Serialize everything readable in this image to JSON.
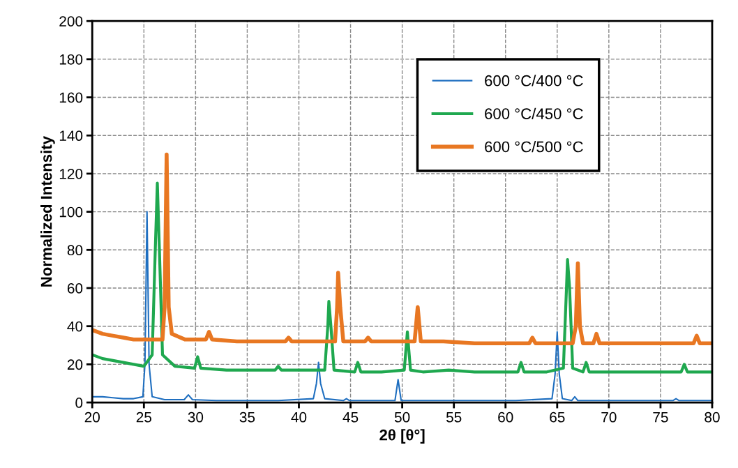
{
  "chart_data": {
    "type": "line",
    "xlabel": "2θ [θ°]",
    "ylabel": "Normalized Intensity",
    "xlim": [
      20,
      80
    ],
    "xticks": [
      20,
      25,
      30,
      35,
      40,
      45,
      50,
      55,
      60,
      65,
      70,
      75,
      80
    ],
    "ylim": [
      0,
      200
    ],
    "yticks": [
      0,
      20,
      40,
      60,
      80,
      100,
      120,
      140,
      160,
      180,
      200
    ],
    "grid": true,
    "legend": "top right",
    "marker": "none",
    "line_style": "solid",
    "series": [
      {
        "name": "600 °C/400 °C",
        "color": "#1f6fc0",
        "x": [
          20,
          21,
          22,
          23,
          24,
          24.9,
          25.1,
          25.3,
          25.5,
          25.8,
          27,
          28.9,
          29.3,
          29.7,
          32,
          35,
          38,
          41.4,
          41.7,
          41.9,
          42.1,
          42.5,
          44.3,
          44.6,
          44.9,
          47,
          49.3,
          49.6,
          49.9,
          53,
          57,
          61,
          64.5,
          64.8,
          65.0,
          65.2,
          65.5,
          66.4,
          66.7,
          67.0,
          70,
          76.2,
          76.5,
          76.8,
          80
        ],
        "values": [
          3,
          3,
          2.5,
          2,
          2,
          3,
          20,
          100,
          20,
          3,
          1.5,
          1.5,
          4,
          1.5,
          1,
          1,
          1,
          2,
          10,
          21,
          10,
          2,
          1,
          2,
          1,
          1,
          1,
          12,
          1,
          1,
          1,
          1,
          2,
          15,
          37,
          15,
          2,
          1,
          3,
          1,
          1,
          1,
          2,
          1,
          1
        ]
      },
      {
        "name": "600 °C/450 °C",
        "color": "#1fa84f",
        "x": [
          20,
          21,
          22,
          23,
          24,
          25,
          25.8,
          26.1,
          26.3,
          26.5,
          26.8,
          28,
          29.9,
          30.2,
          30.5,
          33,
          35,
          37.7,
          38,
          38.3,
          40,
          42.5,
          42.8,
          42.9,
          43.1,
          43.4,
          45.4,
          45.7,
          46,
          48,
          50.2,
          50.5,
          50.8,
          52,
          54.5,
          57,
          61.2,
          61.5,
          61.8,
          64,
          65.6,
          65.9,
          66.0,
          66.2,
          66.5,
          67.5,
          67.8,
          68.1,
          72,
          77,
          77.3,
          77.6,
          80
        ],
        "values": [
          25,
          23,
          22,
          21,
          20,
          19,
          25,
          80,
          115,
          80,
          25,
          19,
          18,
          24,
          18,
          17,
          17,
          17,
          19,
          17,
          17,
          17,
          40,
          53,
          40,
          17,
          16,
          21,
          16,
          16,
          17,
          37,
          17,
          16,
          17,
          16,
          16,
          21,
          16,
          16,
          18,
          60,
          75,
          60,
          18,
          16,
          21,
          16,
          16,
          16,
          20,
          16,
          16
        ]
      },
      {
        "name": "600 °C/500 °C",
        "color": "#e87722",
        "x": [
          20,
          21,
          22,
          23,
          24,
          25,
          26,
          26.8,
          27.0,
          27.2,
          27.4,
          27.7,
          29,
          31.0,
          31.3,
          31.6,
          34,
          36,
          38.7,
          39,
          39.3,
          42,
          43.5,
          43.7,
          43.8,
          44.0,
          44.3,
          46.4,
          46.7,
          47,
          49,
          51.2,
          51.5,
          51.8,
          54,
          57,
          62.3,
          62.6,
          62.9,
          65,
          66.5,
          66.8,
          67.0,
          67.2,
          67.5,
          68.5,
          68.8,
          69.1,
          72,
          78.2,
          78.5,
          78.8,
          80
        ],
        "values": [
          38,
          36,
          35,
          34,
          33,
          33,
          33,
          33,
          50,
          130,
          50,
          36,
          33,
          33,
          37,
          33,
          32,
          32,
          32,
          34,
          32,
          32,
          32,
          50,
          68,
          50,
          32,
          32,
          34,
          32,
          32,
          32,
          50,
          32,
          32,
          31,
          31,
          34,
          31,
          31,
          31,
          40,
          73,
          40,
          31,
          31,
          36,
          31,
          31,
          31,
          35,
          31,
          31
        ]
      }
    ]
  }
}
